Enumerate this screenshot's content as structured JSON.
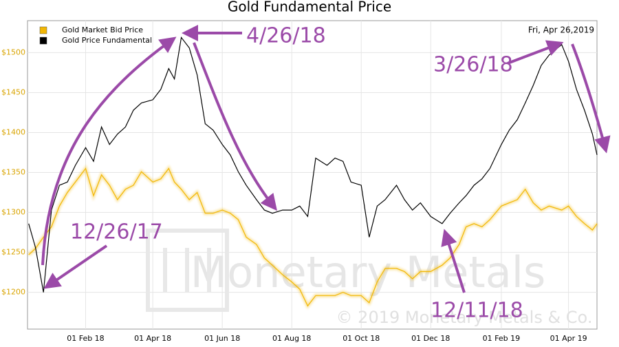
{
  "chart_data": {
    "type": "line",
    "title": "Gold Fundamental Price",
    "date_label": "Fri, Apr 26,2019",
    "watermark": "Monetary Metals",
    "copyright": "© 2019 Monetary Metals & Co.",
    "annotations": [
      "4/26/18",
      "3/26/18",
      "12/26/17",
      "12/11/18"
    ],
    "legend": "top-left",
    "grid": true,
    "xlim": [
      "2017-12-12",
      "2019-04-26"
    ],
    "xticks": [
      {
        "value": "2018-02-01",
        "label": "01 Feb 18"
      },
      {
        "value": "2018-04-01",
        "label": "01 Apr 18"
      },
      {
        "value": "2018-06-01",
        "label": "01 Jun 18"
      },
      {
        "value": "2018-08-01",
        "label": "01 Aug 18"
      },
      {
        "value": "2018-10-01",
        "label": "01 Oct 18"
      },
      {
        "value": "2018-12-01",
        "label": "01 Dec 18"
      },
      {
        "value": "2019-02-01",
        "label": "01 Feb 19"
      },
      {
        "value": "2019-04-01",
        "label": "01 Apr 19"
      }
    ],
    "ylim": [
      1154,
      1540
    ],
    "yticks": [
      {
        "value": 1200,
        "label": "$1200"
      },
      {
        "value": 1250,
        "label": "$1250"
      },
      {
        "value": 1300,
        "label": "$1300"
      },
      {
        "value": 1350,
        "label": "$1350"
      },
      {
        "value": 1400,
        "label": "$1400"
      },
      {
        "value": 1450,
        "label": "$1450"
      },
      {
        "value": 1500,
        "label": "$1500"
      }
    ],
    "x": [
      "2017-12-13",
      "2017-12-19",
      "2017-12-26",
      "2018-01-02",
      "2018-01-09",
      "2018-01-16",
      "2018-01-23",
      "2018-02-01",
      "2018-02-08",
      "2018-02-15",
      "2018-02-22",
      "2018-03-01",
      "2018-03-08",
      "2018-03-15",
      "2018-03-22",
      "2018-04-01",
      "2018-04-08",
      "2018-04-15",
      "2018-04-20",
      "2018-04-26",
      "2018-05-03",
      "2018-05-10",
      "2018-05-17",
      "2018-05-24",
      "2018-06-01",
      "2018-06-08",
      "2018-06-15",
      "2018-06-22",
      "2018-07-01",
      "2018-07-08",
      "2018-07-15",
      "2018-07-24",
      "2018-08-01",
      "2018-08-08",
      "2018-08-15",
      "2018-08-22",
      "2018-09-01",
      "2018-09-08",
      "2018-09-15",
      "2018-09-22",
      "2018-10-01",
      "2018-10-08",
      "2018-10-15",
      "2018-10-22",
      "2018-11-01",
      "2018-11-08",
      "2018-11-15",
      "2018-11-22",
      "2018-12-01",
      "2018-12-11",
      "2018-12-18",
      "2018-12-26",
      "2019-01-01",
      "2019-01-08",
      "2019-01-15",
      "2019-01-22",
      "2019-02-01",
      "2019-02-08",
      "2019-02-15",
      "2019-02-22",
      "2019-03-01",
      "2019-03-08",
      "2019-03-15",
      "2019-03-26",
      "2019-04-01",
      "2019-04-08",
      "2019-04-15",
      "2019-04-22",
      "2019-04-26"
    ],
    "series": [
      {
        "name": "Gold Market Bid Price",
        "color": "#f2b705",
        "values": [
          1247,
          1255,
          1269,
          1282,
          1308,
          1325,
          1338,
          1355,
          1321,
          1347,
          1334,
          1316,
          1329,
          1334,
          1351,
          1338,
          1342,
          1355,
          1338,
          1329,
          1316,
          1325,
          1299,
          1299,
          1303,
          1299,
          1291,
          1269,
          1260,
          1243,
          1234,
          1222,
          1213,
          1204,
          1183,
          1196,
          1196,
          1196,
          1200,
          1196,
          1196,
          1187,
          1213,
          1230,
          1230,
          1226,
          1217,
          1226,
          1226,
          1234,
          1243,
          1260,
          1282,
          1286,
          1282,
          1291,
          1308,
          1312,
          1316,
          1329,
          1312,
          1303,
          1308,
          1303,
          1308,
          1295,
          1286,
          1278,
          1286
        ]
      },
      {
        "name": "Gold Price Fundamental",
        "color": "#000000",
        "values": [
          1286,
          1256,
          1200,
          1303,
          1334,
          1338,
          1359,
          1381,
          1364,
          1407,
          1385,
          1398,
          1407,
          1428,
          1437,
          1441,
          1454,
          1480,
          1467,
          1519,
          1506,
          1472,
          1411,
          1403,
          1385,
          1372,
          1351,
          1334,
          1316,
          1303,
          1299,
          1303,
          1303,
          1308,
          1295,
          1368,
          1359,
          1368,
          1364,
          1338,
          1334,
          1269,
          1308,
          1316,
          1334,
          1316,
          1303,
          1312,
          1295,
          1286,
          1299,
          1312,
          1321,
          1334,
          1342,
          1355,
          1385,
          1403,
          1416,
          1437,
          1459,
          1484,
          1497,
          1510,
          1489,
          1454,
          1428,
          1398,
          1372
        ]
      }
    ]
  }
}
